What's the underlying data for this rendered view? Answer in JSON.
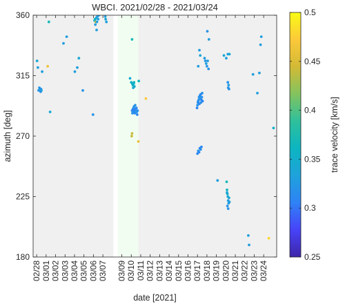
{
  "chart_data": {
    "type": "scatter",
    "title": "WBCI. 2021/02/28 - 2021/03/24",
    "xlabel": "date [2021]",
    "ylabel": "azimuth [deg]",
    "xlim": [
      "2021-02-27T15:00",
      "2021-03-25T09:00"
    ],
    "ylim": [
      180,
      360
    ],
    "yticks": [
      180,
      225,
      270,
      315,
      360
    ],
    "xtick_dates": [
      "2021-02-28",
      "2021-03-01",
      "2021-03-02",
      "2021-03-03",
      "2021-03-04",
      "2021-03-05",
      "2021-03-06",
      "2021-03-07",
      "2021-03-09",
      "2021-03-10",
      "2021-03-11",
      "2021-03-12",
      "2021-03-13",
      "2021-03-14",
      "2021-03-15",
      "2021-03-16",
      "2021-03-17",
      "2021-03-18",
      "2021-03-19",
      "2021-03-20",
      "2021-03-21",
      "2021-03-22",
      "2021-03-23",
      "2021-03-24"
    ],
    "xtick_labels": [
      "02/28",
      "03/01",
      "03/02",
      "03/03",
      "03/04",
      "03/05",
      "03/06",
      "03/07",
      "03/09",
      "03/10",
      "03/11",
      "03/12",
      "03/13",
      "03/14",
      "03/15",
      "03/16",
      "03/17",
      "03/18",
      "03/19",
      "03/20",
      "03/21",
      "03/22",
      "03/23",
      "03/24"
    ],
    "shaded_spans": [
      {
        "start": "2021-02-27T15:00",
        "end": "2021-03-08T03:00",
        "color": "#f0f0f0"
      },
      {
        "start": "2021-03-08T14:00",
        "end": "2021-03-10T18:00",
        "color": "#f2fdf2"
      },
      {
        "start": "2021-03-10T18:00",
        "end": "2021-03-25T09:00",
        "color": "#f0f0f0"
      }
    ],
    "colorbar": {
      "label": "trace velocity  [km/s]",
      "range": [
        0.25,
        0.5
      ],
      "ticks": [
        0.25,
        0.3,
        0.35,
        0.4,
        0.45,
        0.5
      ],
      "tick_labels": [
        "0.25",
        "0.3",
        "0.35",
        "0.4",
        "0.45",
        "0.5"
      ],
      "colormap": [
        "#3e26a8",
        "#4743f8",
        "#2f82f6",
        "#1fa2db",
        "#0cb5c1",
        "#2fc09c",
        "#83c35e",
        "#d3ba36",
        "#fcc93a",
        "#f9fb15"
      ]
    },
    "points_columns": [
      "date",
      "azimuth_deg",
      "trace_velocity_km_s"
    ],
    "points": [
      [
        "2021-02-28T01:00",
        326,
        0.34
      ],
      [
        "2021-02-28T03:00",
        321,
        0.33
      ],
      [
        "2021-02-28T05:00",
        304,
        0.32
      ],
      [
        "2021-02-28T07:00",
        306,
        0.32
      ],
      [
        "2021-02-28T08:00",
        305,
        0.33
      ],
      [
        "2021-02-28T10:00",
        303,
        0.32
      ],
      [
        "2021-02-28T11:00",
        305,
        0.32
      ],
      [
        "2021-02-28T12:00",
        304,
        0.33
      ],
      [
        "2021-02-28T14:00",
        318,
        0.33
      ],
      [
        "2021-03-01T04:00",
        322,
        0.46
      ],
      [
        "2021-03-01T07:00",
        355,
        0.37
      ],
      [
        "2021-03-01T10:00",
        288,
        0.34
      ],
      [
        "2021-03-02T20:00",
        339,
        0.33
      ],
      [
        "2021-03-03T04:00",
        344,
        0.33
      ],
      [
        "2021-03-04T01:00",
        318,
        0.33
      ],
      [
        "2021-03-04T07:00",
        321,
        0.33
      ],
      [
        "2021-03-04T11:00",
        328,
        0.34
      ],
      [
        "2021-03-04T21:00",
        304,
        0.32
      ],
      [
        "2021-03-05T23:00",
        286,
        0.32
      ],
      [
        "2021-03-06T03:00",
        356,
        0.35
      ],
      [
        "2021-03-06T04:00",
        357,
        0.36
      ],
      [
        "2021-03-06T05:00",
        353,
        0.33
      ],
      [
        "2021-03-06T06:00",
        355,
        0.44
      ],
      [
        "2021-03-06T07:00",
        358,
        0.34
      ],
      [
        "2021-03-06T08:00",
        349,
        0.33
      ],
      [
        "2021-03-06T09:00",
        355,
        0.33
      ],
      [
        "2021-03-06T10:00",
        359,
        0.33
      ],
      [
        "2021-03-06T12:00",
        357,
        0.33
      ],
      [
        "2021-03-06T14:00",
        360,
        0.33
      ],
      [
        "2021-03-07T06:00",
        359,
        0.33
      ],
      [
        "2021-03-07T07:00",
        357,
        0.34
      ],
      [
        "2021-03-07T09:00",
        355,
        0.33
      ],
      [
        "2021-03-09T21:00",
        313,
        0.34
      ],
      [
        "2021-03-10T00:00",
        310,
        0.36
      ],
      [
        "2021-03-10T02:00",
        342,
        0.37
      ],
      [
        "2021-03-10T03:00",
        309,
        0.35
      ],
      [
        "2021-03-10T04:00",
        308,
        0.36
      ],
      [
        "2021-03-10T05:00",
        306,
        0.34
      ],
      [
        "2021-03-10T06:00",
        309,
        0.35
      ],
      [
        "2021-03-10T07:00",
        310,
        0.36
      ],
      [
        "2021-03-10T08:00",
        307,
        0.35
      ],
      [
        "2021-03-10T02:00",
        289,
        0.31
      ],
      [
        "2021-03-10T03:00",
        287,
        0.32
      ],
      [
        "2021-03-10T04:00",
        290,
        0.31
      ],
      [
        "2021-03-10T05:00",
        288,
        0.32
      ],
      [
        "2021-03-10T06:00",
        291,
        0.31
      ],
      [
        "2021-03-10T07:00",
        292,
        0.32
      ],
      [
        "2021-03-10T08:00",
        289,
        0.31
      ],
      [
        "2021-03-10T09:00",
        287,
        0.31
      ],
      [
        "2021-03-10T10:00",
        293,
        0.32
      ],
      [
        "2021-03-10T11:00",
        290,
        0.31
      ],
      [
        "2021-03-10T12:00",
        288,
        0.32
      ],
      [
        "2021-03-10T13:00",
        291,
        0.31
      ],
      [
        "2021-03-10T14:00",
        288,
        0.32
      ],
      [
        "2021-03-10T15:00",
        286,
        0.31
      ],
      [
        "2021-03-10T16:00",
        289,
        0.32
      ],
      [
        "2021-03-10T01:00",
        270,
        0.44
      ],
      [
        "2021-03-10T02:00",
        272,
        0.44
      ],
      [
        "2021-03-10T18:00",
        266,
        0.46
      ],
      [
        "2021-03-10T19:00",
        311,
        0.36
      ],
      [
        "2021-03-11T13:00",
        298,
        0.47
      ],
      [
        "2021-03-17T00:00",
        293,
        0.32
      ],
      [
        "2021-03-17T01:00",
        295,
        0.32
      ],
      [
        "2021-03-17T02:00",
        296,
        0.31
      ],
      [
        "2021-03-17T03:00",
        297,
        0.32
      ],
      [
        "2021-03-17T04:00",
        299,
        0.32
      ],
      [
        "2021-03-17T05:00",
        294,
        0.31
      ],
      [
        "2021-03-17T06:00",
        300,
        0.32
      ],
      [
        "2021-03-17T07:00",
        298,
        0.32
      ],
      [
        "2021-03-17T08:00",
        301,
        0.31
      ],
      [
        "2021-03-17T09:00",
        295,
        0.32
      ],
      [
        "2021-03-17T10:00",
        297,
        0.31
      ],
      [
        "2021-03-17T11:00",
        299,
        0.32
      ],
      [
        "2021-03-17T12:00",
        302,
        0.32
      ],
      [
        "2021-03-17T13:00",
        296,
        0.31
      ],
      [
        "2021-03-16T23:00",
        291,
        0.31
      ],
      [
        "2021-03-17T00:00",
        257,
        0.31
      ],
      [
        "2021-03-17T02:00",
        259,
        0.32
      ],
      [
        "2021-03-17T04:00",
        258,
        0.31
      ],
      [
        "2021-03-17T06:00",
        261,
        0.31
      ],
      [
        "2021-03-17T08:00",
        260,
        0.32
      ],
      [
        "2021-03-17T10:00",
        262,
        0.31
      ],
      [
        "2021-03-17T02:00",
        322,
        0.33
      ],
      [
        "2021-03-17T05:00",
        334,
        0.33
      ],
      [
        "2021-03-17T07:00",
        330,
        0.34
      ],
      [
        "2021-03-17T18:00",
        328,
        0.33
      ],
      [
        "2021-03-17T20:00",
        326,
        0.32
      ],
      [
        "2021-03-17T22:00",
        324,
        0.33
      ],
      [
        "2021-03-18T00:00",
        322,
        0.32
      ],
      [
        "2021-03-18T02:00",
        326,
        0.33
      ],
      [
        "2021-03-18T04:00",
        320,
        0.32
      ],
      [
        "2021-03-18T01:00",
        348,
        0.32
      ],
      [
        "2021-03-18T05:00",
        342,
        0.33
      ],
      [
        "2021-03-19T03:00",
        237,
        0.33
      ],
      [
        "2021-03-19T19:00",
        330,
        0.34
      ],
      [
        "2021-03-20T01:00",
        328,
        0.33
      ],
      [
        "2021-03-20T05:00",
        331,
        0.33
      ],
      [
        "2021-03-20T09:00",
        331,
        0.34
      ],
      [
        "2021-03-20T05:00",
        310,
        0.32
      ],
      [
        "2021-03-20T06:00",
        306,
        0.32
      ],
      [
        "2021-03-20T07:00",
        308,
        0.33
      ],
      [
        "2021-03-20T08:00",
        305,
        0.32
      ],
      [
        "2021-03-20T02:00",
        236,
        0.37
      ],
      [
        "2021-03-20T03:00",
        230,
        0.36
      ],
      [
        "2021-03-20T04:00",
        227,
        0.35
      ],
      [
        "2021-03-20T05:00",
        225,
        0.34
      ],
      [
        "2021-03-20T06:00",
        222,
        0.33
      ],
      [
        "2021-03-20T07:00",
        220,
        0.33
      ],
      [
        "2021-03-20T04:00",
        218,
        0.32
      ],
      [
        "2021-03-20T06:00",
        216,
        0.32
      ],
      [
        "2021-03-20T08:00",
        224,
        0.34
      ],
      [
        "2021-03-20T09:00",
        221,
        0.33
      ],
      [
        "2021-03-20T03:00",
        228,
        0.34
      ],
      [
        "2021-03-22T09:00",
        196,
        0.33
      ],
      [
        "2021-03-22T11:00",
        189,
        0.33
      ],
      [
        "2021-03-22T21:00",
        316,
        0.33
      ],
      [
        "2021-03-23T08:00",
        302,
        0.33
      ],
      [
        "2021-03-23T13:00",
        317,
        0.33
      ],
      [
        "2021-03-23T16:00",
        338,
        0.33
      ],
      [
        "2021-03-23T18:00",
        344,
        0.33
      ],
      [
        "2021-03-24T13:00",
        194,
        0.48
      ],
      [
        "2021-03-25T01:00",
        276,
        0.35
      ]
    ]
  }
}
